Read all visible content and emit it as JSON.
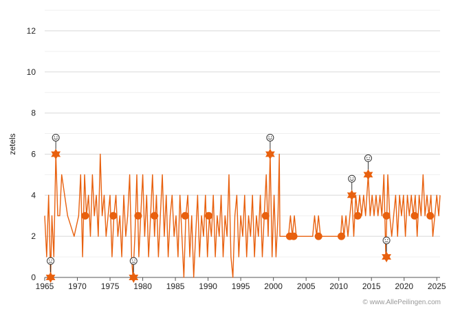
{
  "chart_data": {
    "type": "line",
    "title": "",
    "xlabel": "",
    "ylabel": "zetels",
    "xlim": [
      1965,
      2025.5
    ],
    "ylim": [
      0,
      13
    ],
    "x_ticks": [
      "1965",
      "1970",
      "1975",
      "1980",
      "1985",
      "1990",
      "1995",
      "2000",
      "2005",
      "2010",
      "2015",
      "2020",
      "2025"
    ],
    "y_ticks": [
      "0",
      "2",
      "4",
      "6",
      "8",
      "10",
      "12"
    ],
    "grid": true,
    "legend": "none",
    "color": "#e8600e",
    "series": [
      {
        "values": [
          [
            1965.0,
            3
          ],
          [
            1965.3,
            1
          ],
          [
            1965.6,
            4
          ],
          [
            1965.9,
            0
          ],
          [
            1966.1,
            3
          ],
          [
            1966.4,
            1
          ],
          [
            1966.7,
            6
          ],
          [
            1967.0,
            3
          ],
          [
            1967.3,
            3
          ],
          [
            1967.6,
            5
          ],
          [
            1968.5,
            3
          ],
          [
            1969.5,
            2
          ],
          [
            1970.2,
            3
          ],
          [
            1970.5,
            5
          ],
          [
            1970.8,
            1
          ],
          [
            1971.1,
            5
          ],
          [
            1971.4,
            3
          ],
          [
            1971.7,
            4
          ],
          [
            1972.0,
            2
          ],
          [
            1972.3,
            5
          ],
          [
            1972.6,
            3
          ],
          [
            1972.9,
            4
          ],
          [
            1973.2,
            2
          ],
          [
            1973.5,
            6
          ],
          [
            1973.8,
            3
          ],
          [
            1974.1,
            4
          ],
          [
            1974.4,
            2
          ],
          [
            1974.7,
            3
          ],
          [
            1975.0,
            4
          ],
          [
            1975.3,
            1
          ],
          [
            1975.6,
            3
          ],
          [
            1975.9,
            4
          ],
          [
            1976.2,
            2
          ],
          [
            1976.5,
            3
          ],
          [
            1976.8,
            1
          ],
          [
            1977.1,
            4
          ],
          [
            1977.4,
            2
          ],
          [
            1977.7,
            3
          ],
          [
            1978.0,
            5
          ],
          [
            1978.3,
            1
          ],
          [
            1978.5,
            0
          ],
          [
            1978.8,
            2
          ],
          [
            1979.1,
            5
          ],
          [
            1979.4,
            1
          ],
          [
            1979.7,
            3
          ],
          [
            1980.0,
            5
          ],
          [
            1980.3,
            2
          ],
          [
            1980.6,
            4
          ],
          [
            1980.9,
            1
          ],
          [
            1981.2,
            3
          ],
          [
            1981.5,
            5
          ],
          [
            1981.8,
            2
          ],
          [
            1982.1,
            4
          ],
          [
            1982.4,
            1
          ],
          [
            1982.7,
            3
          ],
          [
            1983.0,
            5
          ],
          [
            1983.3,
            2
          ],
          [
            1983.6,
            4
          ],
          [
            1983.9,
            1
          ],
          [
            1984.2,
            3
          ],
          [
            1984.5,
            4
          ],
          [
            1984.8,
            2
          ],
          [
            1985.1,
            3
          ],
          [
            1985.4,
            1
          ],
          [
            1985.7,
            4
          ],
          [
            1986.0,
            2
          ],
          [
            1986.3,
            0
          ],
          [
            1986.6,
            3
          ],
          [
            1986.9,
            4
          ],
          [
            1987.2,
            1
          ],
          [
            1987.5,
            3
          ],
          [
            1987.8,
            0
          ],
          [
            1988.1,
            2
          ],
          [
            1988.4,
            4
          ],
          [
            1988.7,
            1
          ],
          [
            1989.0,
            3
          ],
          [
            1989.3,
            2
          ],
          [
            1989.6,
            4
          ],
          [
            1989.9,
            1
          ],
          [
            1990.2,
            3
          ],
          [
            1990.5,
            2
          ],
          [
            1990.8,
            4
          ],
          [
            1991.1,
            1
          ],
          [
            1991.4,
            3
          ],
          [
            1991.7,
            2
          ],
          [
            1992.0,
            4
          ],
          [
            1992.3,
            1
          ],
          [
            1992.6,
            3
          ],
          [
            1992.9,
            2
          ],
          [
            1993.2,
            5
          ],
          [
            1993.5,
            1
          ],
          [
            1993.8,
            0
          ],
          [
            1994.1,
            3
          ],
          [
            1994.4,
            4
          ],
          [
            1994.7,
            1
          ],
          [
            1995.0,
            3
          ],
          [
            1995.3,
            2
          ],
          [
            1995.6,
            4
          ],
          [
            1995.9,
            1
          ],
          [
            1996.2,
            3
          ],
          [
            1996.5,
            2
          ],
          [
            1996.8,
            4
          ],
          [
            1997.1,
            1
          ],
          [
            1997.4,
            3
          ],
          [
            1997.7,
            2
          ],
          [
            1998.0,
            4
          ],
          [
            1998.3,
            1
          ],
          [
            1998.6,
            3
          ],
          [
            1998.9,
            5
          ],
          [
            1999.2,
            2
          ],
          [
            1999.5,
            6
          ],
          [
            1999.8,
            1
          ],
          [
            2000.1,
            4
          ],
          [
            2000.4,
            1
          ],
          [
            2000.7,
            3
          ],
          [
            2000.9,
            6
          ],
          [
            2001.0,
            2
          ],
          [
            2002.3,
            2
          ],
          [
            2002.6,
            3
          ],
          [
            2002.9,
            2
          ],
          [
            2003.2,
            3
          ],
          [
            2003.5,
            2
          ],
          [
            2006.0,
            2
          ],
          [
            2006.3,
            3
          ],
          [
            2006.6,
            2
          ],
          [
            2006.9,
            3
          ],
          [
            2007.2,
            2
          ],
          [
            2010.3,
            2
          ],
          [
            2010.5,
            3
          ],
          [
            2010.8,
            2
          ],
          [
            2011.1,
            3
          ],
          [
            2011.4,
            2
          ],
          [
            2011.7,
            3
          ],
          [
            2012.0,
            4
          ],
          [
            2012.3,
            2
          ],
          [
            2012.6,
            4
          ],
          [
            2012.9,
            3
          ],
          [
            2013.2,
            4
          ],
          [
            2013.5,
            3
          ],
          [
            2013.8,
            4
          ],
          [
            2014.1,
            3
          ],
          [
            2014.5,
            5
          ],
          [
            2014.8,
            3
          ],
          [
            2015.1,
            4
          ],
          [
            2015.4,
            3
          ],
          [
            2015.7,
            4
          ],
          [
            2016.0,
            3
          ],
          [
            2016.3,
            4
          ],
          [
            2016.6,
            3
          ],
          [
            2016.9,
            5
          ],
          [
            2017.2,
            1
          ],
          [
            2017.5,
            5
          ],
          [
            2017.8,
            3
          ],
          [
            2018.1,
            2
          ],
          [
            2018.4,
            3
          ],
          [
            2018.7,
            4
          ],
          [
            2019.0,
            2
          ],
          [
            2019.3,
            4
          ],
          [
            2019.6,
            3
          ],
          [
            2019.9,
            4
          ],
          [
            2020.2,
            2
          ],
          [
            2020.5,
            4
          ],
          [
            2020.8,
            3
          ],
          [
            2021.1,
            4
          ],
          [
            2021.4,
            3
          ],
          [
            2021.7,
            4
          ],
          [
            2022.0,
            2
          ],
          [
            2022.3,
            4
          ],
          [
            2022.6,
            3
          ],
          [
            2022.9,
            5
          ],
          [
            2023.2,
            3
          ],
          [
            2023.5,
            4
          ],
          [
            2023.8,
            3
          ],
          [
            2024.1,
            4
          ],
          [
            2024.4,
            2
          ],
          [
            2024.7,
            3
          ],
          [
            2025.0,
            4
          ],
          [
            2025.3,
            3
          ],
          [
            2025.5,
            4
          ]
        ]
      }
    ],
    "circle_markers": [
      [
        2002.5,
        2
      ],
      [
        2003.1,
        2
      ],
      [
        2006.9,
        2
      ],
      [
        2010.4,
        2
      ],
      [
        2012.9,
        3
      ],
      [
        2017.3,
        3
      ],
      [
        2021.6,
        3
      ],
      [
        2024.0,
        3
      ],
      [
        1986.5,
        3
      ],
      [
        1990.1,
        3
      ],
      [
        1998.8,
        3
      ],
      [
        1975.5,
        3
      ],
      [
        1981.8,
        3
      ],
      [
        1971.2,
        3
      ],
      [
        1979.3,
        3
      ]
    ],
    "star_markers": [
      {
        "x": 1965.9,
        "y": 0,
        "face": "neutral"
      },
      {
        "x": 1966.7,
        "y": 6,
        "face": "happy"
      },
      {
        "x": 1978.6,
        "y": 0,
        "face": "neutral"
      },
      {
        "x": 1999.5,
        "y": 6,
        "face": "happy"
      },
      {
        "x": 2012.0,
        "y": 4,
        "face": "happy"
      },
      {
        "x": 2014.5,
        "y": 5,
        "face": "happy"
      },
      {
        "x": 2017.3,
        "y": 1,
        "face": "neutral"
      }
    ]
  },
  "credit": "© www.AllePeilingen.com"
}
